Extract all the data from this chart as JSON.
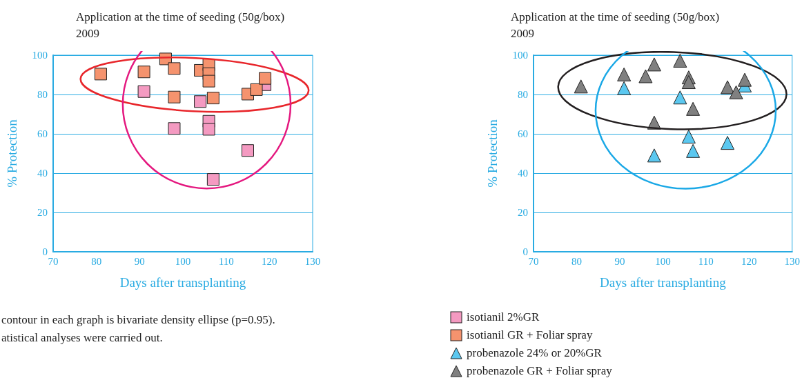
{
  "chart_data": [
    {
      "type": "scatter",
      "title": "Application at the time of seeding (50g/box)",
      "subtitle": "2009",
      "xlabel": "Days after transplanting",
      "ylabel": "% Protection",
      "xlim": [
        70,
        130
      ],
      "xticks": [
        70,
        80,
        90,
        100,
        110,
        120,
        130
      ],
      "ylim": [
        0,
        100
      ],
      "yticks": [
        0,
        20,
        40,
        60,
        80,
        100
      ],
      "grid": "y",
      "marker": "square",
      "legend": false,
      "annotations": [
        "contour in each graph is bivariate density ellipse (p=0.95).",
        "atistical analyses were carried out."
      ],
      "series": [
        {
          "name": "isotianil 2%GR",
          "color": "#f49ac1",
          "x": [
            91,
            104,
            98,
            106,
            106,
            115,
            107,
            119
          ],
          "values": [
            81.5,
            76.4,
            62.7,
            66.4,
            62.3,
            51.5,
            36.8,
            85
          ]
        },
        {
          "name": "isotianil GR + Foliar spray",
          "color": "#f5936e",
          "x": [
            81,
            91,
            96,
            98,
            104,
            106,
            106,
            106,
            98,
            107,
            115,
            117,
            119
          ],
          "values": [
            90.4,
            91.5,
            98.1,
            93.2,
            92.3,
            95.1,
            90.6,
            86.8,
            78.7,
            78.2,
            80.2,
            82.5,
            88.2
          ]
        }
      ]
    },
    {
      "type": "scatter",
      "title": "Application at the time of seeding (50g/box)",
      "subtitle": "2009",
      "xlabel": "Days after transplanting",
      "ylabel": "% Protection",
      "xlim": [
        70,
        130
      ],
      "xticks": [
        70,
        80,
        90,
        100,
        110,
        120,
        130
      ],
      "ylim": [
        0,
        100
      ],
      "yticks": [
        0,
        20,
        40,
        60,
        80,
        100
      ],
      "grid": "y",
      "marker": "triangle",
      "legend": "bottom",
      "series": [
        {
          "name": "probenazole 24% or 20%GR",
          "color": "#5bc8f0",
          "x": [
            91,
            104,
            106,
            107,
            115,
            98,
            119
          ],
          "values": [
            83.2,
            78.5,
            58.6,
            51.3,
            55.4,
            49,
            84.6
          ]
        },
        {
          "name": "probenazole GR + Foliar spray",
          "color": "#808080",
          "x": [
            81,
            91,
            96,
            98,
            104,
            106,
            106,
            107,
            98,
            115,
            117,
            119
          ],
          "values": [
            84.1,
            90.2,
            89.3,
            95.3,
            97.2,
            88.7,
            86.3,
            72.7,
            65.7,
            83.7,
            81.1,
            87.5
          ]
        }
      ]
    }
  ]
}
